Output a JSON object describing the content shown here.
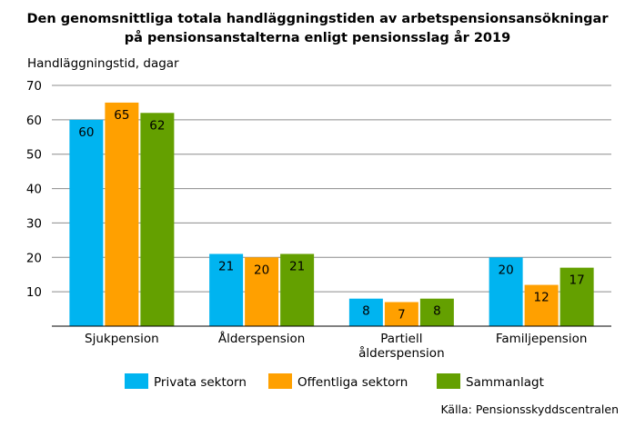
{
  "chart_data": {
    "type": "bar",
    "title": [
      "Den genomsnittliga totala handläggningstiden av arbetspensionsansökningar",
      "på pensionsanstalterna enligt pensionsslag år 2019"
    ],
    "ylabel": "Handläggningstid, dagar",
    "ylim": [
      0,
      70
    ],
    "yticks": [
      10,
      20,
      30,
      40,
      50,
      60,
      70
    ],
    "grid": true,
    "legend": "bottom",
    "categories": [
      [
        "Sjukpension"
      ],
      [
        "Ålderspension"
      ],
      [
        "Partiell",
        "ålderspension"
      ],
      [
        "Familjepension"
      ]
    ],
    "series": [
      {
        "name": "Privata sektorn",
        "color": "#00b4f0",
        "values": [
          60,
          21,
          8,
          20
        ]
      },
      {
        "name": "Offentliga sektorn",
        "color": "#ffa000",
        "values": [
          65,
          20,
          7,
          12
        ]
      },
      {
        "name": "Sammanlagt",
        "color": "#64a000",
        "values": [
          62,
          21,
          8,
          17
        ]
      }
    ],
    "source": "Källa: Pensionsskyddscentralen"
  }
}
